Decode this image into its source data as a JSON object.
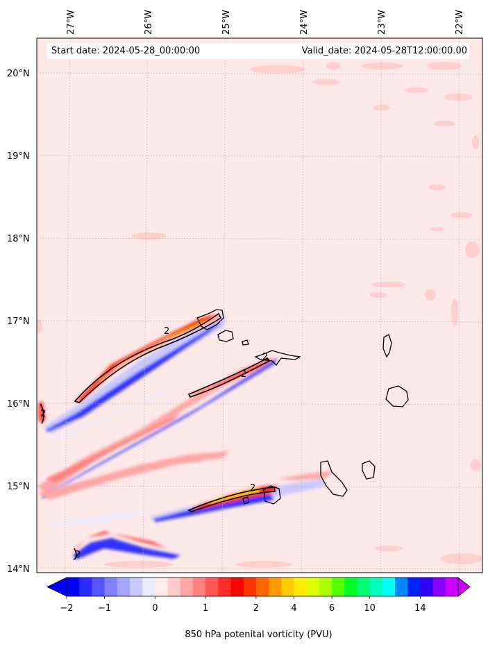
{
  "map": {
    "start_date": "Start date: 2024-05-28_00:00:00",
    "valid_date": "Valid_date: 2024-05-28T12:00:00.00",
    "lon_labels": [
      "27°W",
      "26°W",
      "25°W",
      "24°W",
      "23°W",
      "22°W"
    ],
    "lat_labels": [
      "20°N",
      "19°N",
      "18°N",
      "17°N",
      "16°N",
      "15°N",
      "14°N"
    ],
    "contour_label": "2",
    "background_color": "#fde8e8"
  },
  "colorbar": {
    "label": "850 hPa potenital vorticity (PVU)",
    "tick_labels": [
      "−2",
      "−1",
      "0",
      "1",
      "2",
      "4",
      "6",
      "10",
      "14"
    ],
    "colors": [
      "#0000ff",
      "#2b2bff",
      "#5555ff",
      "#7f7fff",
      "#a5a5ff",
      "#c9c9ff",
      "#ececff",
      "#ffecec",
      "#ffcaca",
      "#ffa6a6",
      "#ff8080",
      "#ff5555",
      "#ff2b2b",
      "#ff0000",
      "#ff3300",
      "#ff6600",
      "#ff9900",
      "#ffcc00",
      "#ffee00",
      "#ddff00",
      "#aaff00",
      "#55ff00",
      "#00ff22",
      "#00ff77",
      "#00ffbb",
      "#00ffff",
      "#0088ff",
      "#0022ff",
      "#3300ff",
      "#8800ff",
      "#cc00ff"
    ]
  }
}
